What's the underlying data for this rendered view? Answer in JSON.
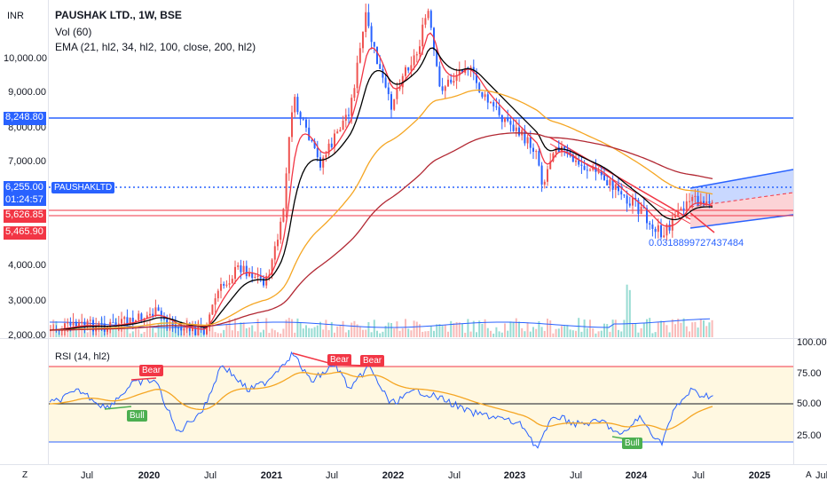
{
  "currency": "INR",
  "title": "PAUSHAK LTD., 1W, BSE",
  "indicators": [
    "Vol (60)",
    "EMA (21, hl2, 34, hl2, 100, close, 200, hl2)"
  ],
  "rsi_label": "RSI (14, hl2)",
  "price_axis": [
    "10,000.00",
    "9,000.00",
    "7,000.00",
    "4,000.00",
    "3,000.00",
    "2,000.00"
  ],
  "price_axis_partial": "8,000.00",
  "price_tags": {
    "hline": "8,248.80",
    "last": "6,255.00",
    "countdown": "01:24:57",
    "level_a": "5,626.85",
    "level_b": "5,465.90"
  },
  "symbol_tag": "PAUSHAKLTD",
  "fib_label": "0.0318899727437484",
  "rsi_axis": [
    "100.00",
    "75.00",
    "50.00",
    "25.00"
  ],
  "divergence_tags": [
    "Bear",
    "Bear",
    "Bear",
    "Bull",
    "Bull"
  ],
  "time_axis": [
    {
      "label": "Jul",
      "bold": false
    },
    {
      "label": "2020",
      "bold": true
    },
    {
      "label": "Jul",
      "bold": false
    },
    {
      "label": "2021",
      "bold": true
    },
    {
      "label": "Jul",
      "bold": false
    },
    {
      "label": "2022",
      "bold": true
    },
    {
      "label": "Jul",
      "bold": false
    },
    {
      "label": "2023",
      "bold": true
    },
    {
      "label": "Jul",
      "bold": false
    },
    {
      "label": "2024",
      "bold": true
    },
    {
      "label": "Jul",
      "bold": false
    },
    {
      "label": "2025",
      "bold": true
    },
    {
      "label": "Jul",
      "bold": false
    }
  ],
  "corner_left": "Z",
  "corner_right": "A",
  "colors": {
    "up": "#ef5350",
    "down": "#2962ff",
    "ema21": "#f23645",
    "ema34": "#000000",
    "ema100": "#f5a623",
    "ema200": "#b22833",
    "hline": "#2962ff",
    "rsi": "#2962ff",
    "rsi_ma": "#f5a623",
    "bull": "#4caf50",
    "bear": "#f23645"
  }
}
